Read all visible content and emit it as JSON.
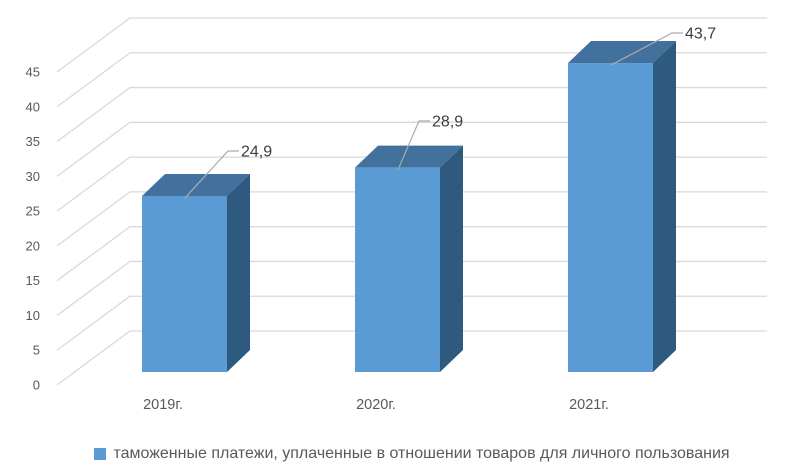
{
  "chart_data": {
    "type": "bar",
    "variant": "3d-column",
    "title": "",
    "xlabel": "",
    "ylabel": "",
    "categories": [
      "2019г.",
      "2020г.",
      "2021г."
    ],
    "values": [
      24.9,
      28.9,
      43.7
    ],
    "data_labels": [
      "24,9",
      "28,9",
      "43,7"
    ],
    "legend": "таможенные платежи, уплаченные в отношении товаров для личного пользования",
    "legend_position": "bottom",
    "ylim": [
      0,
      45
    ],
    "y_tick_interval": 5,
    "y_ticks": [
      "0",
      "5",
      "10",
      "15",
      "20",
      "25",
      "30",
      "35",
      "40",
      "45"
    ],
    "grid": true,
    "colors": {
      "bar_front": "#5B9BD5",
      "bar_top": "#41719C",
      "bar_side": "#2E5A80",
      "gridline": "#D9D9D9",
      "leader_line": "#ABABAB",
      "axis_text": "#595959",
      "data_label_text": "#3D3D3D",
      "legend_text": "#595959",
      "background": "#FFFFFF"
    }
  }
}
